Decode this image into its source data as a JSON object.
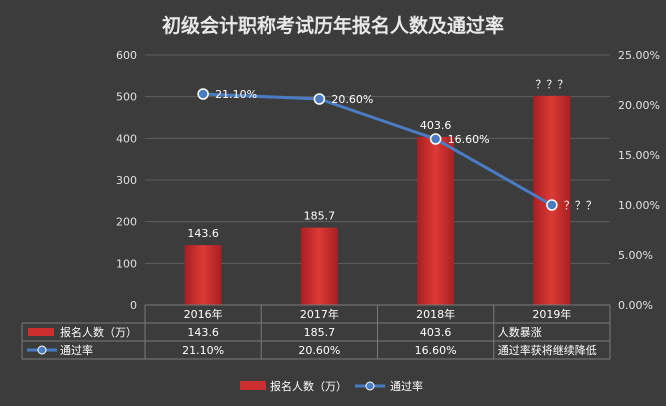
{
  "chart_data": {
    "type": "bar",
    "title": "初级会计职称考试历年报名人数及通过率",
    "categories": [
      "2016年",
      "2017年",
      "2018年",
      "2019年"
    ],
    "ylim": [
      0,
      600
    ],
    "y2lim": [
      0,
      25
    ],
    "left_ticks": [
      "0",
      "100",
      "200",
      "300",
      "400",
      "500",
      "600"
    ],
    "right_ticks": [
      "0.00%",
      "5.00%",
      "10.00%",
      "15.00%",
      "20.00%",
      "25.00%"
    ],
    "series": [
      {
        "name": "报名人数（万）",
        "type": "bar",
        "axis": "left",
        "color": "#cc2d2d",
        "values": [
          143.6,
          185.7,
          403.6,
          502
        ],
        "labels": [
          "143.6",
          "185.7",
          "403.6",
          "？？？"
        ]
      },
      {
        "name": "通过率",
        "type": "line",
        "axis": "right",
        "color": "#4a7cc4",
        "values": [
          21.1,
          20.6,
          16.6,
          10.0
        ],
        "labels": [
          "21.10%",
          "20.60%",
          "16.60%",
          "？？？"
        ]
      }
    ],
    "table": {
      "rows": [
        {
          "label": "报名人数（万）",
          "cells": [
            "143.6",
            "185.7",
            "403.6",
            "人数暴涨"
          ]
        },
        {
          "label": "通过率",
          "cells": [
            "21.10%",
            "20.60%",
            "16.60%",
            "通过率获将继续降低"
          ]
        }
      ]
    },
    "legend": {
      "position": "bottom",
      "items": [
        "报名人数（万）",
        "通过率"
      ]
    }
  }
}
